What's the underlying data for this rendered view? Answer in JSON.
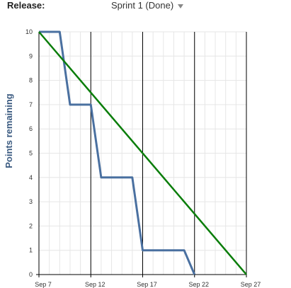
{
  "header": {
    "release_label": "Release:",
    "release_value": "Sprint 1 (Done)",
    "dropdown_icon": "caret-down-icon"
  },
  "colors": {
    "actual": "#4a70a0",
    "ideal": "#0a7d0a",
    "ylabel": "#3a5a80",
    "grid": "#e6e6e6",
    "major_grid": "#000000"
  },
  "chart_data": {
    "type": "line",
    "title": "",
    "xlabel": "",
    "ylabel": "Points remaining",
    "ylim": [
      0,
      10
    ],
    "xlim": [
      "Sep 7",
      "Sep 27"
    ],
    "x_tick_labels": [
      "Sep 7",
      "Sep 12",
      "Sep 17",
      "Sep 22",
      "Sep 27"
    ],
    "x_tick_dates": [
      7,
      12,
      17,
      22,
      27
    ],
    "y_ticks": [
      0,
      1,
      2,
      3,
      4,
      5,
      6,
      7,
      8,
      9,
      10
    ],
    "grid": true,
    "legend": "none",
    "series": [
      {
        "key": "actual",
        "x": [
          7,
          9,
          10,
          12,
          13,
          16,
          17,
          21,
          22
        ],
        "values": [
          10,
          10,
          7,
          7,
          4,
          4,
          1,
          1,
          0
        ]
      },
      {
        "key": "ideal",
        "x": [
          7,
          27
        ],
        "values": [
          10,
          0
        ]
      }
    ]
  }
}
